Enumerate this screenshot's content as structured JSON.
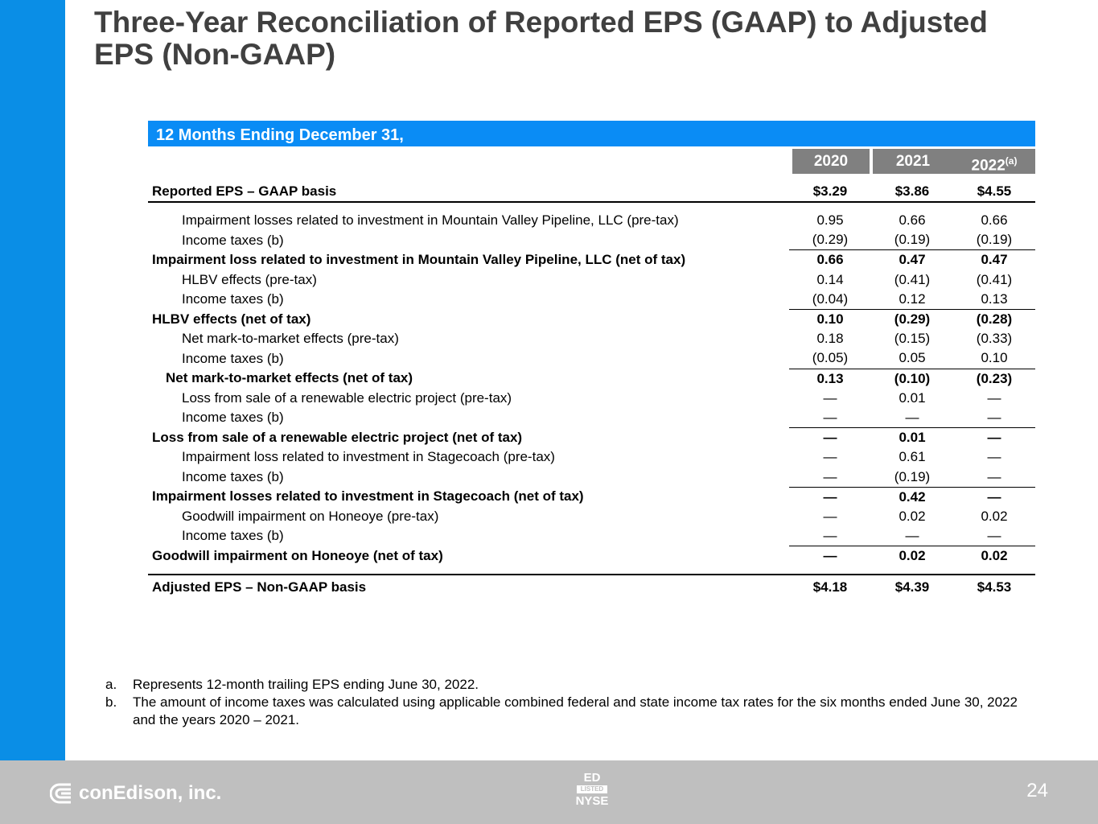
{
  "title": "Three-Year Reconciliation of Reported EPS (GAAP) to Adjusted EPS (Non-GAAP)",
  "band": "12 Months Ending December 31,",
  "years": [
    "2020",
    "2021",
    "2022"
  ],
  "year_note": "(a)",
  "rows": [
    {
      "label": "Reported EPS – GAAP basis",
      "v": [
        "$3.29",
        "$3.86",
        "$4.55"
      ]
    },
    {
      "label": "Impairment losses related to investment in Mountain Valley Pipeline, LLC (pre-tax)",
      "v": [
        "0.95",
        "0.66",
        "0.66"
      ]
    },
    {
      "label": "Income taxes (b)",
      "v": [
        "(0.29)",
        "(0.19)",
        "(0.19)"
      ]
    },
    {
      "label": "Impairment loss related to investment in Mountain Valley Pipeline, LLC (net of tax)",
      "v": [
        "0.66",
        "0.47",
        "0.47"
      ]
    },
    {
      "label": "HLBV effects (pre-tax)",
      "v": [
        "0.14",
        "(0.41)",
        "(0.41)"
      ]
    },
    {
      "label": "Income taxes (b)",
      "v": [
        "(0.04)",
        "0.12",
        "0.13"
      ]
    },
    {
      "label": "HLBV effects (net of tax)",
      "v": [
        "0.10",
        "(0.29)",
        "(0.28)"
      ]
    },
    {
      "label": "Net mark-to-market effects (pre-tax)",
      "v": [
        "0.18",
        "(0.15)",
        "(0.33)"
      ]
    },
    {
      "label": "Income taxes (b)",
      "v": [
        "(0.05)",
        "0.05",
        "0.10"
      ]
    },
    {
      "label": "Net mark-to-market effects (net of tax)",
      "v": [
        "0.13",
        "(0.10)",
        "(0.23)"
      ]
    },
    {
      "label": "Loss from sale of a renewable electric project (pre-tax)",
      "v": [
        "—",
        "0.01",
        "—"
      ]
    },
    {
      "label": "Income taxes (b)",
      "v": [
        "—",
        "—",
        "—"
      ]
    },
    {
      "label": "Loss from sale of a renewable electric project (net of tax)",
      "v": [
        "—",
        "0.01",
        "—"
      ]
    },
    {
      "label": "Impairment loss related to investment in Stagecoach (pre-tax)",
      "v": [
        "—",
        "0.61",
        "—"
      ]
    },
    {
      "label": "Income taxes (b)",
      "v": [
        "—",
        "(0.19)",
        "—"
      ]
    },
    {
      "label": "Impairment losses related to investment in Stagecoach (net of tax)",
      "v": [
        "—",
        "0.42",
        "—"
      ]
    },
    {
      "label": "Goodwill impairment on Honeoye (pre-tax)",
      "v": [
        "—",
        "0.02",
        "0.02"
      ]
    },
    {
      "label": "Income taxes (b)",
      "v": [
        "—",
        "—",
        "—"
      ]
    },
    {
      "label": "Goodwill impairment on Honeoye (net of tax)",
      "v": [
        "—",
        "0.02",
        "0.02"
      ]
    },
    {
      "label": "Adjusted EPS – Non-GAAP basis",
      "v": [
        "$4.18",
        "$4.39",
        "$4.53"
      ]
    }
  ],
  "notes": [
    {
      "k": "a.",
      "t": "Represents 12-month trailing EPS ending June 30, 2022."
    },
    {
      "k": "b.",
      "t": "The amount of income taxes was calculated using applicable combined federal and state income tax rates for the six months ended June 30, 2022 and the years 2020 – 2021."
    }
  ],
  "footer": {
    "logo": "conEdison, inc.",
    "ticker": "ED",
    "listed": "LISTED",
    "exchange": "NYSE",
    "page": "24"
  }
}
